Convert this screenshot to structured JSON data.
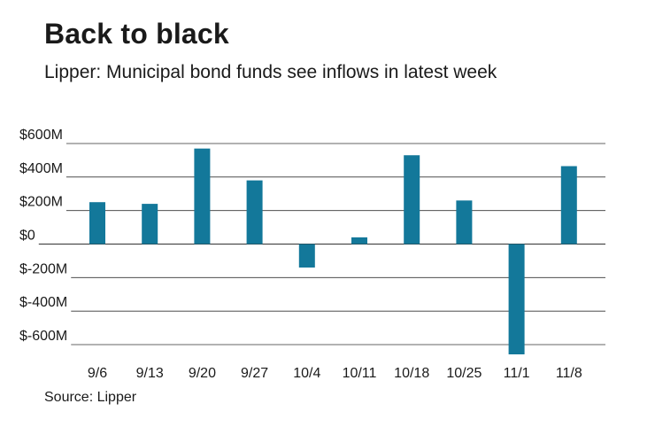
{
  "title": "Back to black",
  "subtitle": "Lipper: Municipal bond funds see inflows in latest week",
  "source": "Source: Lipper",
  "colors": {
    "bar": "#13789a",
    "grid": "#333333"
  },
  "chart_data": {
    "type": "bar",
    "title": "Back to black",
    "xlabel": "",
    "ylabel": "",
    "ylim": [
      -660,
      600
    ],
    "yticks": [
      600,
      400,
      200,
      0,
      -200,
      -400,
      -600
    ],
    "ytick_labels": [
      "$600M",
      "$400M",
      "$200M",
      "$0",
      "$-200M",
      "$-400M",
      "$-600M"
    ],
    "categories": [
      "9/6",
      "9/13",
      "9/20",
      "9/27",
      "10/4",
      "10/11",
      "10/18",
      "10/25",
      "11/1",
      "11/8"
    ],
    "values": [
      250,
      240,
      570,
      380,
      -140,
      40,
      530,
      260,
      -660,
      465
    ],
    "grid": true,
    "legend": "none"
  }
}
